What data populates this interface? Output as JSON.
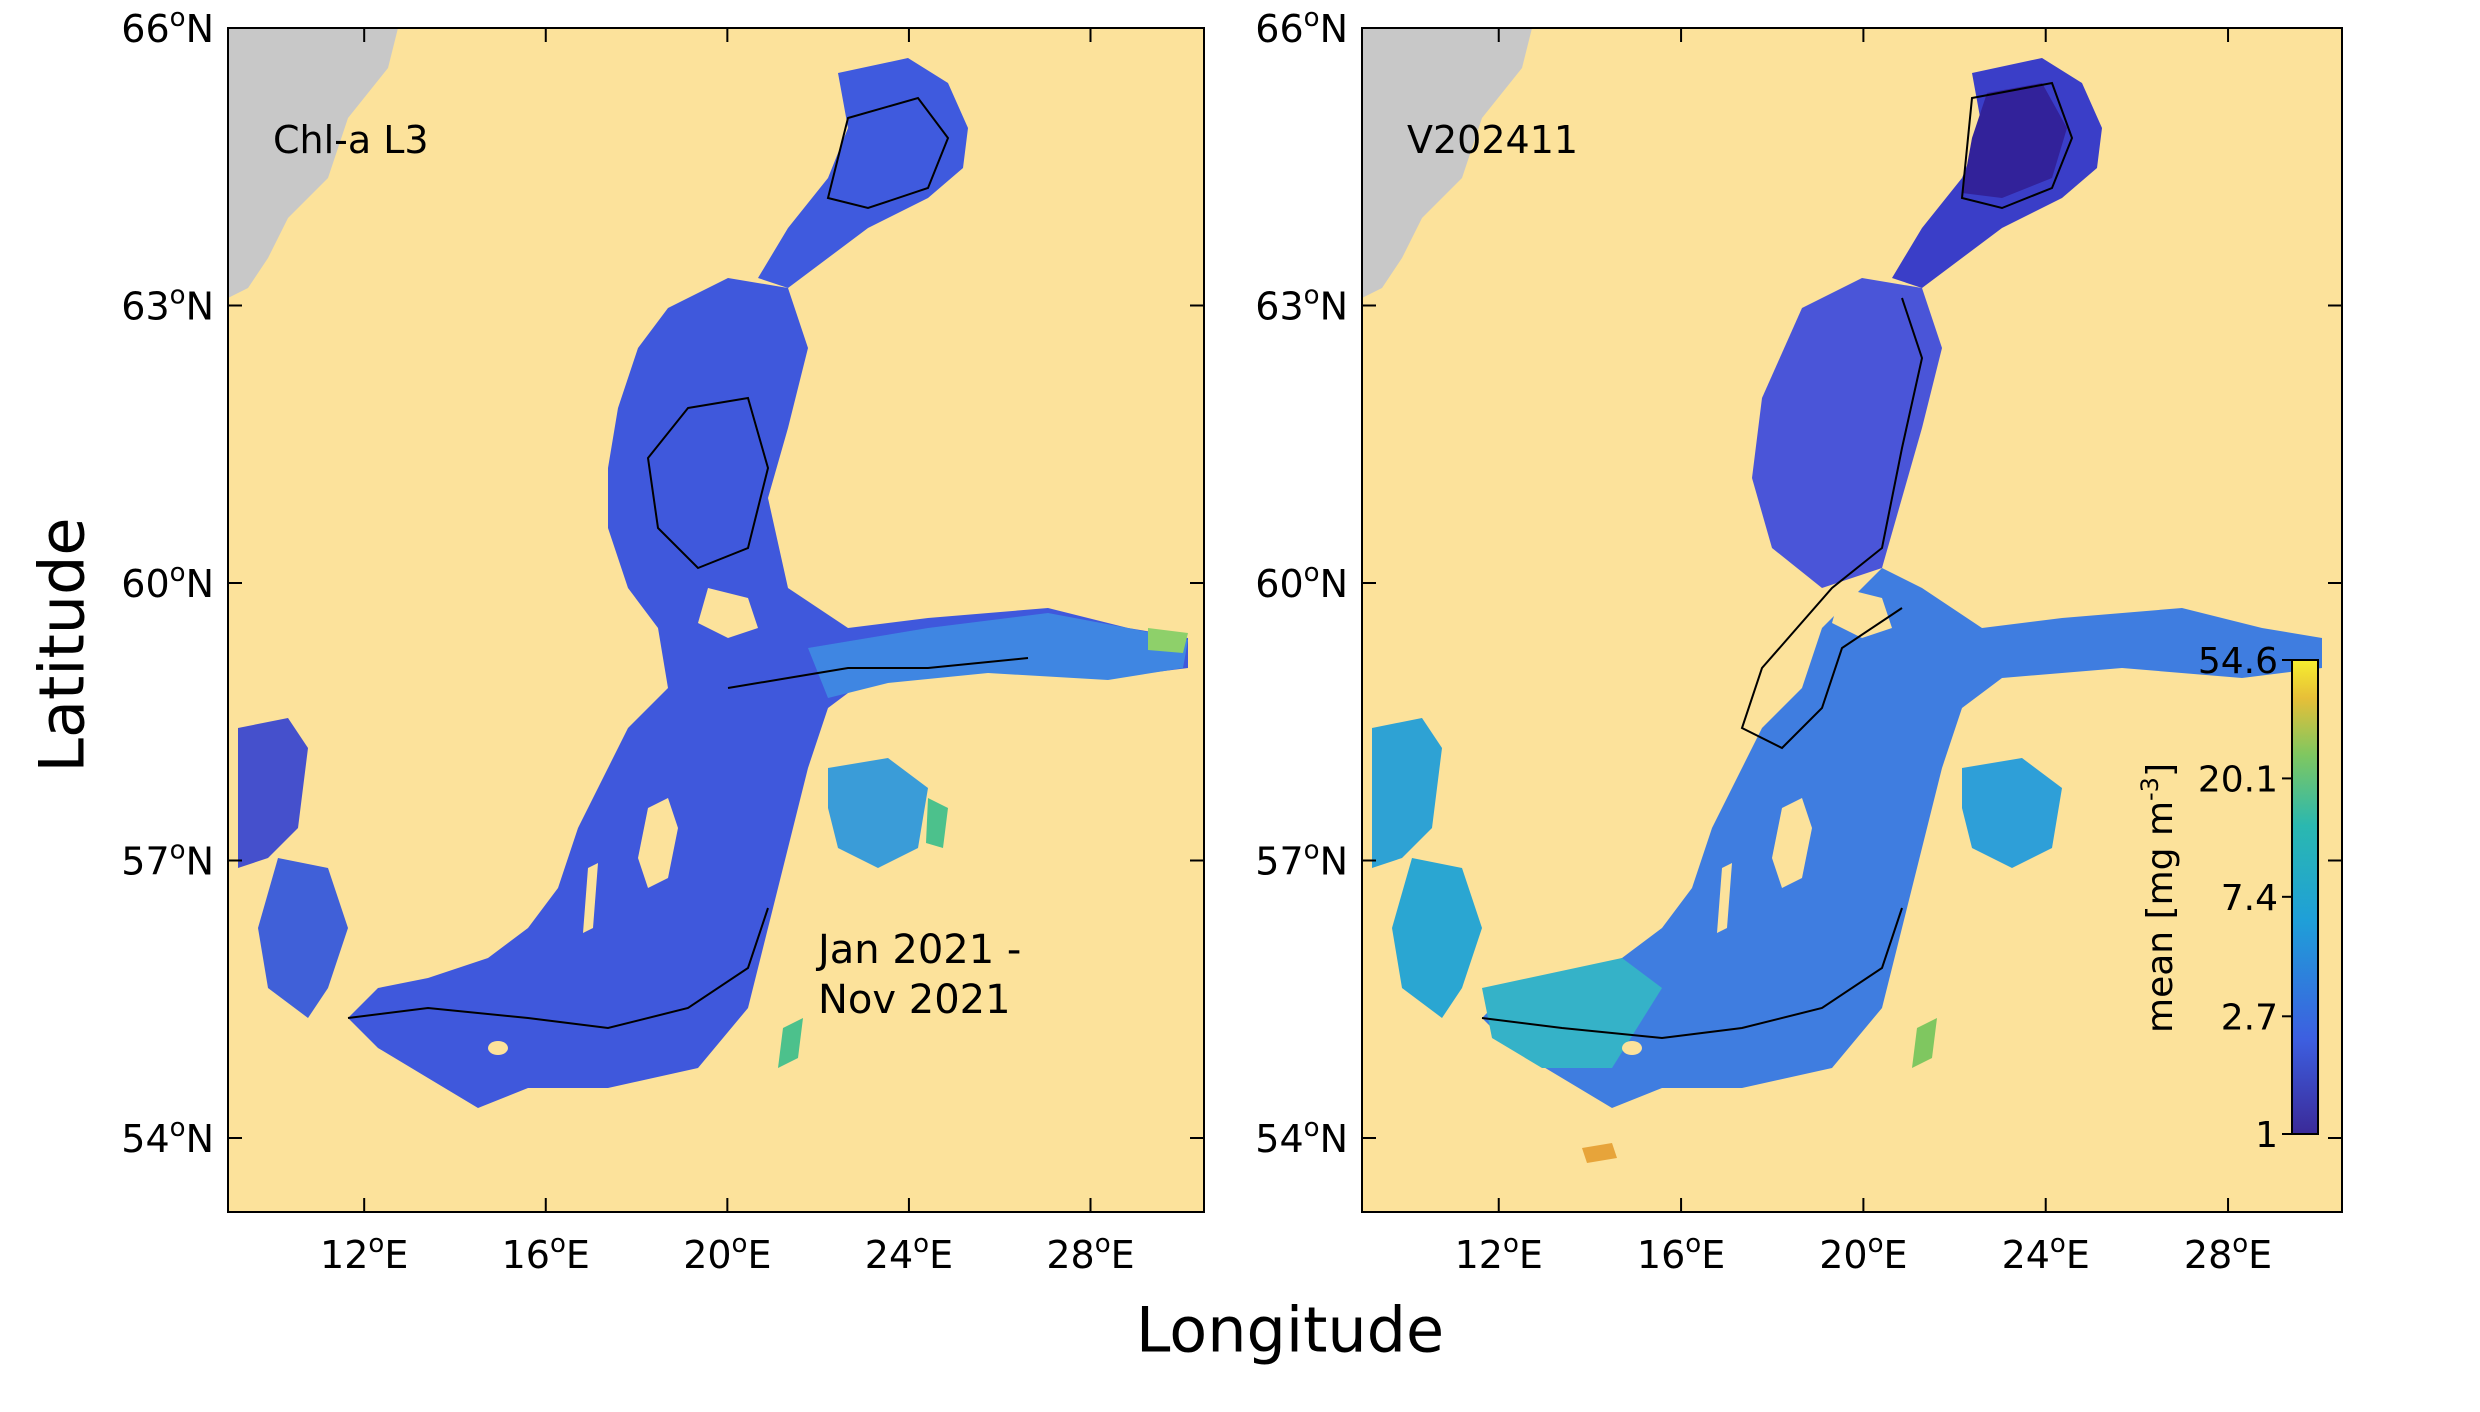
{
  "figure": {
    "xlabel": "Longitude",
    "ylabel": "Latitude",
    "lat_ticks": [
      "54",
      "57",
      "60",
      "63",
      "66"
    ],
    "lon_ticks": [
      "12",
      "16",
      "20",
      "24",
      "28"
    ],
    "deg_symbol": "o",
    "north": "N",
    "east": "E"
  },
  "panels": [
    {
      "label": "Chl-a L3",
      "note_line1": "Jan 2021 -",
      "note_line2": "Nov 2021"
    },
    {
      "label": "V202411"
    }
  ],
  "colorbar": {
    "title_main": "mean [mg m",
    "title_sup": "-3",
    "title_end": "]",
    "ticks": [
      "1",
      "2.7",
      "7.4",
      "20.1",
      "54.6"
    ],
    "scale": "log",
    "range": [
      1,
      54.6
    ]
  },
  "colors": {
    "land": "#fce29b",
    "no_data": "#c8c8c8",
    "low": "#3b2a98",
    "mid_low": "#3d64e6",
    "mid": "#1fa3d6",
    "mid_high": "#4fc48a",
    "high": "#f1e63c"
  },
  "chart_data": {
    "type": "heatmap",
    "title": "",
    "xlabel": "Longitude",
    "ylabel": "Latitude",
    "xlim": [
      9,
      30.5
    ],
    "ylim": [
      53.2,
      66
    ],
    "x_ticks": [
      12,
      16,
      20,
      24,
      28
    ],
    "y_ticks": [
      54,
      57,
      60,
      63,
      66
    ],
    "panels": [
      "Chl-a L3",
      "V202411"
    ],
    "colorbar_ticks": [
      1,
      2.7,
      7.4,
      20.1,
      54.6
    ],
    "colorbar_label": "mean [mg m-3]"
  }
}
